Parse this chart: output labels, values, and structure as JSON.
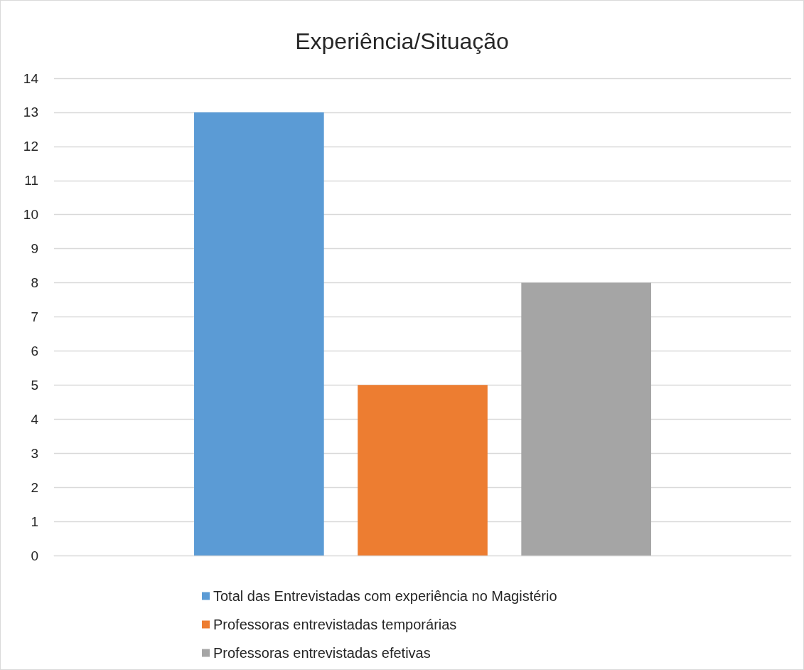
{
  "chart_data": {
    "type": "bar",
    "title": "Experiência/Situação",
    "categories": [
      null
    ],
    "series": [
      {
        "name": "Total das Entrevistadas com experiência no Magistério",
        "color": "#5b9bd5",
        "values": [
          13
        ]
      },
      {
        "name": "Professoras entrevistadas temporárias",
        "color": "#ed7d31",
        "values": [
          5
        ]
      },
      {
        "name": "Professoras entrevistadas efetivas",
        "color": "#a5a5a5",
        "values": [
          8
        ]
      }
    ],
    "ylim": [
      0,
      14
    ],
    "yticks": [
      0,
      1,
      2,
      3,
      4,
      5,
      6,
      7,
      8,
      9,
      10,
      11,
      12,
      13,
      14
    ],
    "grid": "y",
    "legend": "bottom"
  }
}
